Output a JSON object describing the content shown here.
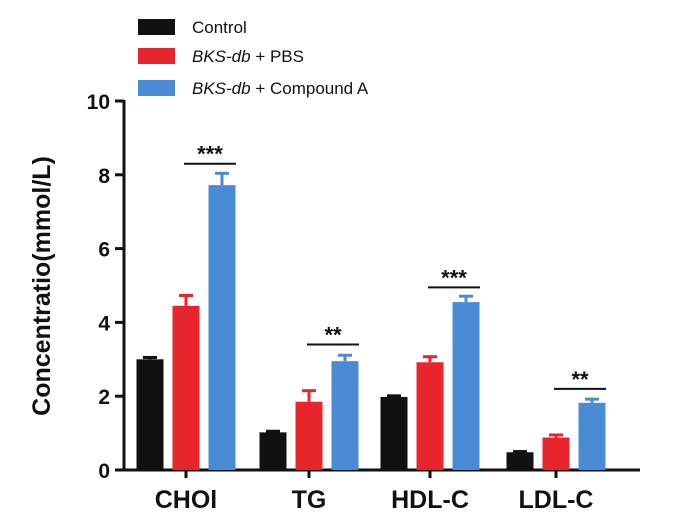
{
  "chart_data": {
    "type": "bar",
    "title": "",
    "xlabel": "",
    "ylabel": "Concentratio(mmol/L)",
    "ylim": [
      0,
      10
    ],
    "yticks": [
      0,
      2,
      4,
      6,
      8,
      10
    ],
    "categories": [
      "CHOl",
      "TG",
      "HDL-C",
      "LDL-C"
    ],
    "series": [
      {
        "name": "Control",
        "name_italic": "",
        "name_rest": "Control",
        "color": "#111111",
        "values": [
          3.0,
          1.02,
          1.98,
          0.48
        ],
        "errors": [
          0.05,
          0.03,
          0.03,
          0.02
        ]
      },
      {
        "name": "BKS-db + PBS",
        "name_italic": "BKS-db",
        "name_rest": " + PBS",
        "color": "#e8252d",
        "values": [
          4.45,
          1.85,
          2.92,
          0.88
        ],
        "errors": [
          0.28,
          0.3,
          0.15,
          0.07
        ]
      },
      {
        "name": "BKS-db + Compound A",
        "name_italic": "BKS-db",
        "name_rest": " + Compound A",
        "color": "#4a8bd6",
        "values": [
          7.72,
          2.95,
          4.55,
          1.82
        ],
        "errors": [
          0.32,
          0.16,
          0.16,
          0.1
        ]
      }
    ],
    "significance": [
      {
        "category": "CHOl",
        "label": "***",
        "y": 8.3
      },
      {
        "category": "TG",
        "label": "**",
        "y": 3.4
      },
      {
        "category": "HDL-C",
        "label": "***",
        "y": 4.95
      },
      {
        "category": "LDL-C",
        "label": "**",
        "y": 2.2
      }
    ],
    "legend_position": "top-left"
  }
}
